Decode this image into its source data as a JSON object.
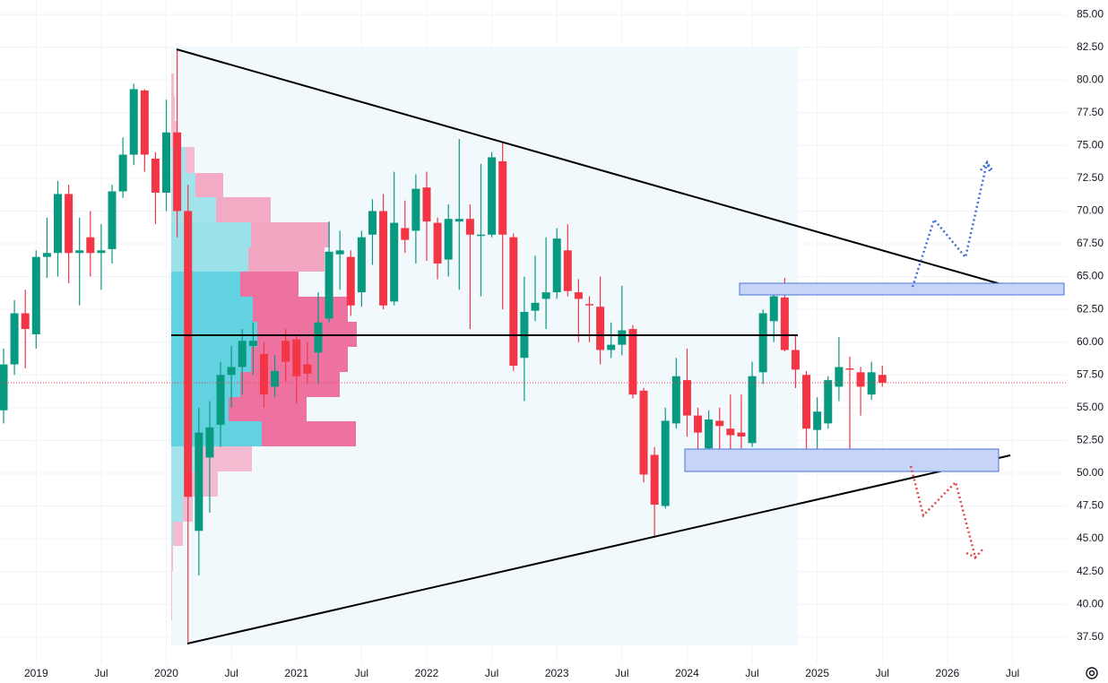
{
  "chart_data": {
    "type": "candlestick",
    "x": [
      "2018-10",
      "2018-11",
      "2018-12",
      "2019-01",
      "2019-02",
      "2019-03",
      "2019-04",
      "2019-05",
      "2019-06",
      "2019-07",
      "2019-08",
      "2019-09",
      "2019-10",
      "2019-11",
      "2019-12",
      "2020-01",
      "2020-02",
      "2020-03",
      "2020-04",
      "2020-05",
      "2020-06",
      "2020-07",
      "2020-08",
      "2020-09",
      "2020-10",
      "2020-11",
      "2020-12",
      "2021-01",
      "2021-02",
      "2021-03",
      "2021-04",
      "2021-05",
      "2021-06",
      "2021-07",
      "2021-08",
      "2021-09",
      "2021-10",
      "2021-11",
      "2021-12",
      "2022-01",
      "2022-02",
      "2022-03",
      "2022-04",
      "2022-05",
      "2022-06",
      "2022-07",
      "2022-08",
      "2022-09",
      "2022-10",
      "2022-11",
      "2022-12",
      "2023-01",
      "2023-02",
      "2023-03",
      "2023-04",
      "2023-05",
      "2023-06",
      "2023-07",
      "2023-08",
      "2023-09",
      "2023-10",
      "2023-11",
      "2023-12",
      "2024-01",
      "2024-02",
      "2024-03",
      "2024-04",
      "2024-05",
      "2024-06",
      "2024-07",
      "2024-08",
      "2024-09",
      "2024-10",
      "2024-11",
      "2024-12",
      "2025-01",
      "2025-02",
      "2025-03",
      "2025-04",
      "2025-05",
      "2025-06",
      "2025-07"
    ],
    "open": [
      54.8,
      58.3,
      62.2,
      60.6,
      66.5,
      66.8,
      71.3,
      66.8,
      68.0,
      66.8,
      67.1,
      71.5,
      74.3,
      79.2,
      74.0,
      71.4,
      76.0,
      70.0,
      45.6,
      51.2,
      53.7,
      57.5,
      58.1,
      59.7,
      59.1,
      56.6,
      60.1,
      60.2,
      58.3,
      59.2,
      61.8,
      66.7,
      66.5,
      63.8,
      68.2,
      70.0,
      63.1,
      68.7,
      68.5,
      71.8,
      69.1,
      66.3,
      69.2,
      69.4,
      68.1,
      68.2,
      73.8,
      68.0,
      58.8,
      62.4,
      63.3,
      63.8,
      67.0,
      63.8,
      62.9,
      62.7,
      59.4,
      59.8,
      61.0,
      56.3,
      51.4,
      47.5,
      53.8,
      57.1,
      54.4,
      51.9,
      54.0,
      53.4,
      53.1,
      52.3,
      57.7,
      61.6,
      63.4,
      59.4,
      57.5,
      53.3,
      53.8,
      56.6,
      58.0,
      57.7,
      56.0,
      57.5
    ],
    "high": [
      59.5,
      63.2,
      64.0,
      67.0,
      69.5,
      72.3,
      72.0,
      69.5,
      70.0,
      69.0,
      72.0,
      75.6,
      79.7,
      79.3,
      74.5,
      78.5,
      82.3,
      72.0,
      55.0,
      55.5,
      58.5,
      59.7,
      61.0,
      61.5,
      60.0,
      59.0,
      61.0,
      60.5,
      60.0,
      63.8,
      69.2,
      68.5,
      67.0,
      68.5,
      70.9,
      71.3,
      73.0,
      70.8,
      72.8,
      73.0,
      69.5,
      70.5,
      75.5,
      70.5,
      73.6,
      74.5,
      75.3,
      68.3,
      65.0,
      66.6,
      68.0,
      68.7,
      69.0,
      64.8,
      63.5,
      65.0,
      61.5,
      64.3,
      61.3,
      56.5,
      52.0,
      55.0,
      58.8,
      59.5,
      55.0,
      54.8,
      55.0,
      56.0,
      56.0,
      58.5,
      62.5,
      64.0,
      64.9,
      60.5,
      57.8,
      55.8,
      57.4,
      60.4,
      58.9,
      58.1,
      58.5,
      58.2
    ],
    "low": [
      53.8,
      57.5,
      58.0,
      59.5,
      64.9,
      65.0,
      64.5,
      62.8,
      65.0,
      64.0,
      66.0,
      71.0,
      73.5,
      73.0,
      69.0,
      70.0,
      68.0,
      37.1,
      42.2,
      47.0,
      52.0,
      55.0,
      56.0,
      57.5,
      55.0,
      55.8,
      57.0,
      55.3,
      56.8,
      56.8,
      61.5,
      64.0,
      62.0,
      62.7,
      65.9,
      62.5,
      62.8,
      66.8,
      66.0,
      66.2,
      64.8,
      65.0,
      64.0,
      61.0,
      63.5,
      68.0,
      62.5,
      57.8,
      55.5,
      61.6,
      61.0,
      63.3,
      63.5,
      60.0,
      60.0,
      58.3,
      58.8,
      59.0,
      55.7,
      49.3,
      45.2,
      47.3,
      53.4,
      52.8,
      51.0,
      50.9,
      50.8,
      51.6,
      51.9,
      52.0,
      56.8,
      60.0,
      59.3,
      56.5,
      51.8,
      51.6,
      53.4,
      55.5,
      50.7,
      54.4,
      55.6,
      56.6
    ],
    "close": [
      58.3,
      62.2,
      61.0,
      66.5,
      66.8,
      71.3,
      66.8,
      67.0,
      66.8,
      67.0,
      71.5,
      74.3,
      79.3,
      74.3,
      71.4,
      76.0,
      70.0,
      48.2,
      53.1,
      53.5,
      57.5,
      58.1,
      60.1,
      60.1,
      56.0,
      57.8,
      58.5,
      57.4,
      57.6,
      61.5,
      66.9,
      67.0,
      62.8,
      68.0,
      70.0,
      62.8,
      69.1,
      67.8,
      71.7,
      69.2,
      66.0,
      69.4,
      69.4,
      68.2,
      68.2,
      74.1,
      68.2,
      58.2,
      62.3,
      63.0,
      63.8,
      67.9,
      63.9,
      63.3,
      62.8,
      59.4,
      59.8,
      60.9,
      56.0,
      49.9,
      47.6,
      54.0,
      57.4,
      54.4,
      53.1,
      54.1,
      53.6,
      52.9,
      52.8,
      57.4,
      62.2,
      63.5,
      59.4,
      57.9,
      53.4,
      54.7,
      57.1,
      58.1,
      57.9,
      56.6,
      57.7,
      56.9
    ],
    "up_color": "#089981",
    "down_color": "#f23645",
    "xlim": [
      "2018-10",
      "2026-12"
    ],
    "xticks": [
      {
        "value": "2019-01",
        "label": "2019"
      },
      {
        "value": "2019-07",
        "label": "Jul"
      },
      {
        "value": "2020-01",
        "label": "2020"
      },
      {
        "value": "2020-07",
        "label": "Jul"
      },
      {
        "value": "2021-01",
        "label": "2021"
      },
      {
        "value": "2021-07",
        "label": "Jul"
      },
      {
        "value": "2022-01",
        "label": "2022"
      },
      {
        "value": "2022-07",
        "label": "Jul"
      },
      {
        "value": "2023-01",
        "label": "2023"
      },
      {
        "value": "2023-07",
        "label": "Jul"
      },
      {
        "value": "2024-01",
        "label": "2024"
      },
      {
        "value": "2024-07",
        "label": "Jul"
      },
      {
        "value": "2025-01",
        "label": "2025"
      },
      {
        "value": "2025-07",
        "label": "Jul"
      },
      {
        "value": "2026-01",
        "label": "2026"
      },
      {
        "value": "2026-07",
        "label": "Jul"
      }
    ],
    "ylim": [
      35.5,
      86.1
    ],
    "yticks": [
      {
        "value": 37.5,
        "label": "37.50"
      },
      {
        "value": 40,
        "label": "40.00"
      },
      {
        "value": 42.5,
        "label": "42.50"
      },
      {
        "value": 45,
        "label": "45.00"
      },
      {
        "value": 47.5,
        "label": "47.50"
      },
      {
        "value": 50,
        "label": "50.00"
      },
      {
        "value": 52.5,
        "label": "52.50"
      },
      {
        "value": 55,
        "label": "55.00"
      },
      {
        "value": 57.5,
        "label": "57.50"
      },
      {
        "value": 60,
        "label": "60.00"
      },
      {
        "value": 62.5,
        "label": "62.50"
      },
      {
        "value": 65,
        "label": "65.00"
      },
      {
        "value": 67.5,
        "label": "67.50"
      },
      {
        "value": 70,
        "label": "70.00"
      },
      {
        "value": 72.5,
        "label": "72.50"
      },
      {
        "value": 75,
        "label": "75.00"
      },
      {
        "value": 77.5,
        "label": "77.50"
      },
      {
        "value": 80,
        "label": "80.00"
      },
      {
        "value": 82.5,
        "label": "82.50"
      },
      {
        "value": 85,
        "label": "85.00"
      }
    ],
    "grid": true
  }
}
